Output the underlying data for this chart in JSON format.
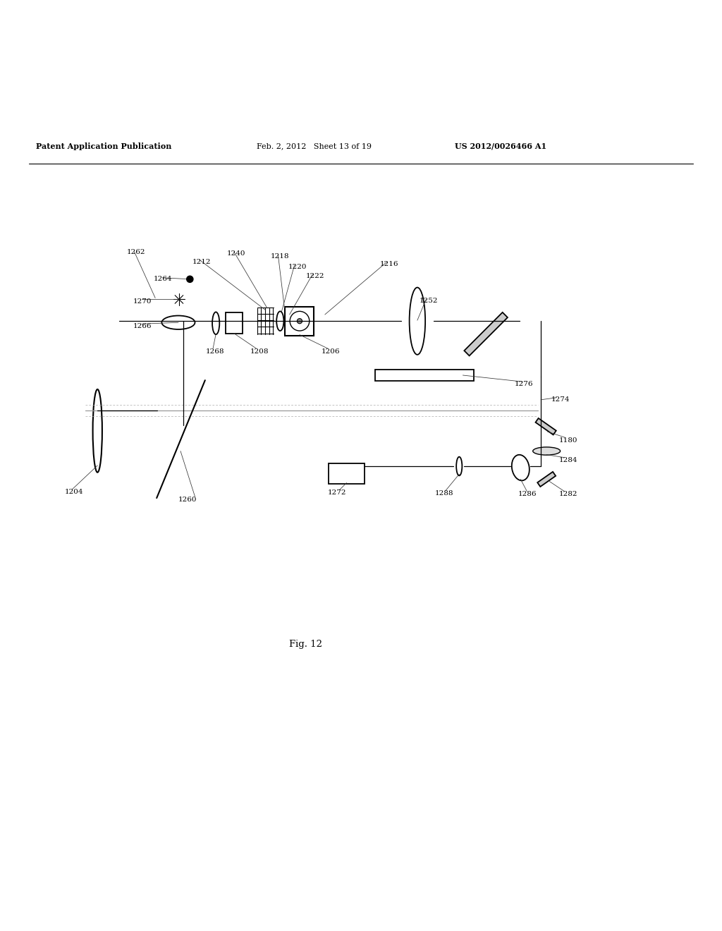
{
  "header_left": "Patent Application Publication",
  "header_mid": "Feb. 2, 2012   Sheet 13 of 19",
  "header_right": "US 2012/0026466 A1",
  "fig_label": "Fig. 12",
  "bg_color": "#ffffff",
  "line_color": "#000000"
}
